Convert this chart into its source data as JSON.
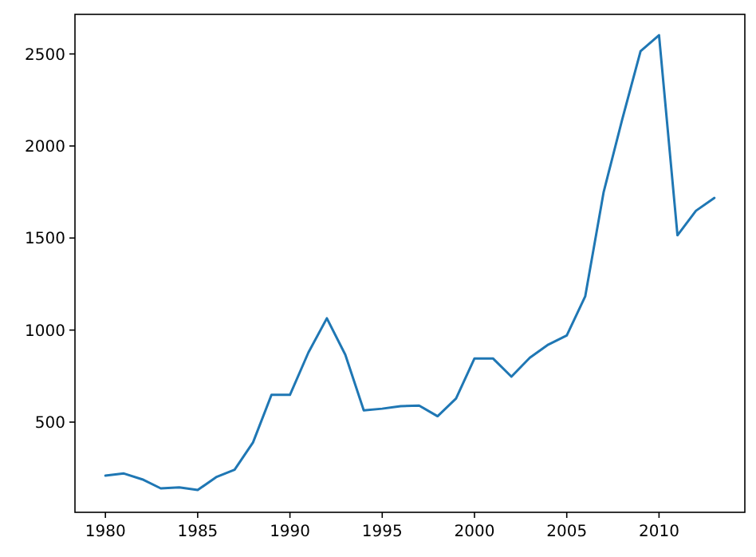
{
  "chart_data": {
    "type": "line",
    "x": [
      1980,
      1981,
      1982,
      1983,
      1984,
      1985,
      1986,
      1987,
      1988,
      1989,
      1990,
      1991,
      1992,
      1993,
      1994,
      1995,
      1996,
      1997,
      1998,
      1999,
      2000,
      2001,
      2002,
      2003,
      2004,
      2005,
      2006,
      2007,
      2008,
      2009,
      2010,
      2011,
      2012,
      2013
    ],
    "series": [
      {
        "color": "#1f77b4",
        "values": [
          209,
          221,
          189,
          140,
          145,
          131,
          201,
          241,
          390,
          648,
          648,
          878,
          1064,
          866,
          564,
          573,
          587,
          590,
          532,
          628,
          846,
          846,
          747,
          850,
          921,
          971,
          1183,
          1750,
          2142,
          2515,
          2602,
          1515,
          1648,
          1718
        ]
      }
    ],
    "xlim": [
      1978.35,
      2014.65
    ],
    "xticks": [
      1980,
      1985,
      1990,
      1995,
      2000,
      2005,
      2010
    ],
    "ylim": [
      10,
      2715
    ],
    "yticks": [
      500,
      1000,
      1500,
      2000,
      2500
    ]
  }
}
